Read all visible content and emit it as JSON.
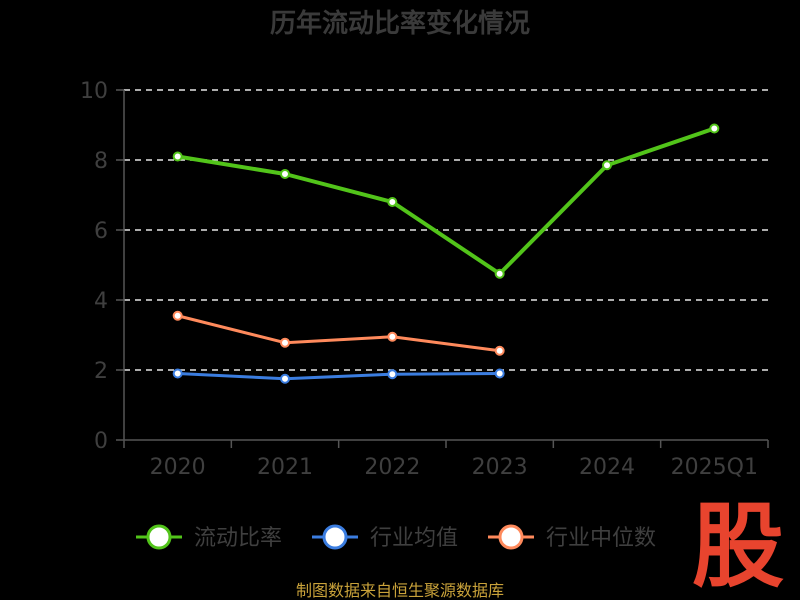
{
  "chart_data": {
    "type": "line",
    "title": "历年流动比率变化情况",
    "categories": [
      "2020",
      "2021",
      "2022",
      "2023",
      "2024",
      "2025Q1"
    ],
    "ylim": [
      0,
      10
    ],
    "yticks": [
      0,
      2,
      4,
      6,
      8,
      10
    ],
    "grid": true,
    "legend_position": "bottom",
    "series": [
      {
        "name": "流动比率",
        "color": "#52c41a",
        "values": [
          8.1,
          7.6,
          6.8,
          4.75,
          7.85,
          8.9
        ]
      },
      {
        "name": "行业均值",
        "color": "#3b7de0",
        "values": [
          1.9,
          1.75,
          1.88,
          1.9,
          null,
          null
        ]
      },
      {
        "name": "行业中位数",
        "color": "#ff8a5c",
        "values": [
          3.55,
          2.78,
          2.95,
          2.55,
          null,
          null
        ]
      }
    ]
  },
  "source_text": "制图数据来自恒生聚源数据库",
  "watermark_text": "股"
}
